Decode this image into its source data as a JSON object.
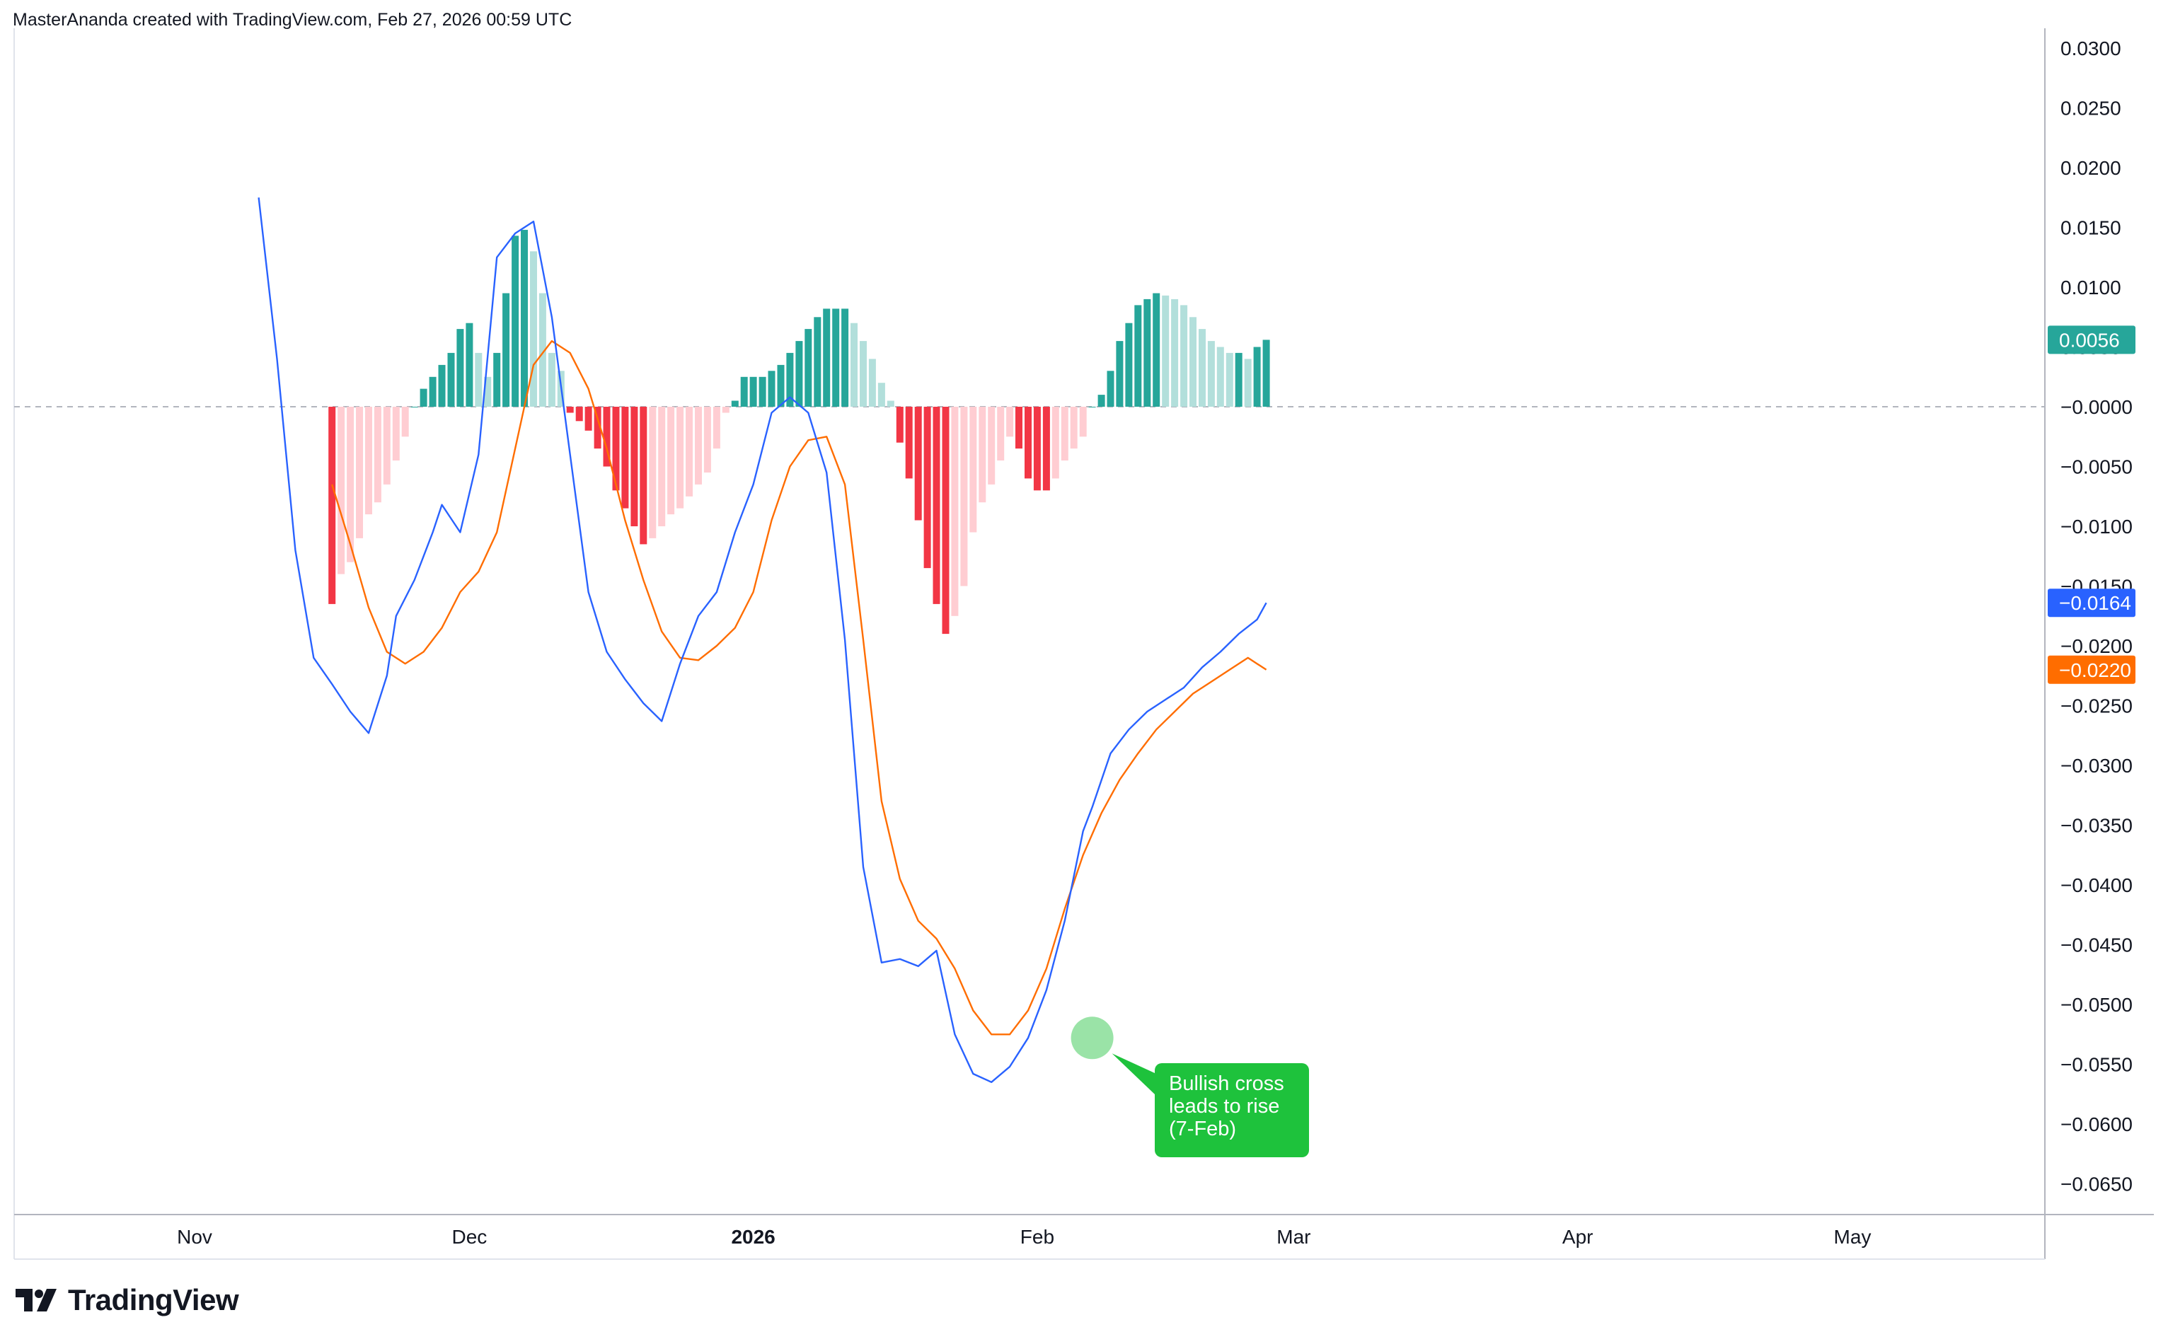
{
  "header": {
    "attribution": "MasterAnanda created with TradingView.com, Feb 27, 2026 00:59 UTC"
  },
  "brand": {
    "name": "TradingView",
    "icon": "tradingview-logo-icon"
  },
  "colors": {
    "macd_line": "#2962ff",
    "signal_line": "#ff6d00",
    "hist_pos_strong": "#26a69a",
    "hist_pos_weak": "#b2dfdb",
    "hist_neg_strong": "#f23645",
    "hist_neg_weak": "#ffcdd2",
    "annotation": "#1ec23c",
    "zero_line": "#b2b5be"
  },
  "chart_data": {
    "type": "line",
    "title": "",
    "xlabel": "",
    "ylabel": "",
    "ylim": [
      -0.0685,
      0.0305
    ],
    "xlim": [
      "2025-10-21",
      "2026-05-29"
    ],
    "grid": false,
    "y_ticks": [
      "0.0300",
      "0.0250",
      "0.0200",
      "0.0150",
      "0.0100",
      "0.0050",
      "−0.0000",
      "−0.0050",
      "−0.0100",
      "−0.0150",
      "−0.0200",
      "−0.0250",
      "−0.0300",
      "−0.0350",
      "−0.0400",
      "−0.0450",
      "−0.0500",
      "−0.0550",
      "−0.0600",
      "−0.0650"
    ],
    "x_ticks": [
      {
        "label": "Nov",
        "date": "2025-11-01",
        "bold": false
      },
      {
        "label": "Dec",
        "date": "2025-12-01",
        "bold": false
      },
      {
        "label": "2026",
        "date": "2026-01-01",
        "bold": true
      },
      {
        "label": "Feb",
        "date": "2026-02-01",
        "bold": false
      },
      {
        "label": "Mar",
        "date": "2026-03-01",
        "bold": false
      },
      {
        "label": "Apr",
        "date": "2026-04-01",
        "bold": false
      },
      {
        "label": "May",
        "date": "2026-05-01",
        "bold": false
      }
    ],
    "last_values": [
      {
        "series": "histogram",
        "label": "0.0056",
        "value": 0.0056,
        "color": "#26a69a"
      },
      {
        "series": "macd",
        "label": "−0.0164",
        "value": -0.0164,
        "color": "#2962ff"
      },
      {
        "series": "signal",
        "label": "−0.0220",
        "value": -0.022,
        "color": "#ff6d00"
      }
    ],
    "series": [
      {
        "type": "line",
        "color": "#2962ff",
        "x": [
          "2025-11-08",
          "2025-11-10",
          "2025-11-12",
          "2025-11-14",
          "2025-11-16",
          "2025-11-18",
          "2025-11-20",
          "2025-11-22",
          "2025-11-23",
          "2025-11-25",
          "2025-11-27",
          "2025-11-28",
          "2025-11-30",
          "2025-12-02",
          "2025-12-04",
          "2025-12-06",
          "2025-12-08",
          "2025-12-10",
          "2025-12-12",
          "2025-12-14",
          "2025-12-16",
          "2025-12-18",
          "2025-12-20",
          "2025-12-22",
          "2025-12-24",
          "2025-12-26",
          "2025-12-28",
          "2025-12-30",
          "2026-01-01",
          "2026-01-03",
          "2026-01-05",
          "2026-01-07",
          "2026-01-09",
          "2026-01-11",
          "2026-01-13",
          "2026-01-15",
          "2026-01-17",
          "2026-01-19",
          "2026-01-21",
          "2026-01-23",
          "2026-01-25",
          "2026-01-27",
          "2026-01-29",
          "2026-01-31",
          "2026-02-02",
          "2026-02-04",
          "2026-02-06",
          "2026-02-07",
          "2026-02-09",
          "2026-02-11",
          "2026-02-13",
          "2026-02-15",
          "2026-02-17",
          "2026-02-19",
          "2026-02-21",
          "2026-02-23",
          "2026-02-25",
          "2026-02-26"
        ],
        "values": [
          0.0175,
          0.004,
          -0.012,
          -0.021,
          -0.0232,
          -0.0255,
          -0.0273,
          -0.0225,
          -0.0175,
          -0.0145,
          -0.0105,
          -0.0082,
          -0.0105,
          -0.004,
          0.0125,
          0.0145,
          0.0155,
          0.0075,
          -0.004,
          -0.0155,
          -0.0205,
          -0.0228,
          -0.0248,
          -0.0263,
          -0.0215,
          -0.0175,
          -0.0155,
          -0.0105,
          -0.0065,
          -0.0005,
          0.0008,
          -0.0005,
          -0.0055,
          -0.0195,
          -0.0385,
          -0.0465,
          -0.0462,
          -0.0468,
          -0.0455,
          -0.0525,
          -0.0558,
          -0.0565,
          -0.0552,
          -0.0528,
          -0.0488,
          -0.043,
          -0.0355,
          -0.0335,
          -0.029,
          -0.027,
          -0.0255,
          -0.0245,
          -0.0235,
          -0.0218,
          -0.0205,
          -0.019,
          -0.0178,
          -0.0164
        ]
      },
      {
        "type": "line",
        "color": "#ff6d00",
        "x": [
          "2025-11-16",
          "2025-11-18",
          "2025-11-20",
          "2025-11-22",
          "2025-11-24",
          "2025-11-26",
          "2025-11-28",
          "2025-11-30",
          "2025-12-02",
          "2025-12-04",
          "2025-12-06",
          "2025-12-08",
          "2025-12-10",
          "2025-12-12",
          "2025-12-14",
          "2025-12-16",
          "2025-12-18",
          "2025-12-20",
          "2025-12-22",
          "2025-12-24",
          "2025-12-26",
          "2025-12-28",
          "2025-12-30",
          "2026-01-01",
          "2026-01-03",
          "2026-01-05",
          "2026-01-07",
          "2026-01-09",
          "2026-01-11",
          "2026-01-13",
          "2026-01-15",
          "2026-01-17",
          "2026-01-19",
          "2026-01-21",
          "2026-01-23",
          "2026-01-25",
          "2026-01-27",
          "2026-01-29",
          "2026-01-31",
          "2026-02-02",
          "2026-02-04",
          "2026-02-06",
          "2026-02-08",
          "2026-02-10",
          "2026-02-12",
          "2026-02-14",
          "2026-02-16",
          "2026-02-18",
          "2026-02-20",
          "2026-02-22",
          "2026-02-24",
          "2026-02-26"
        ],
        "values": [
          -0.0065,
          -0.0115,
          -0.0168,
          -0.0205,
          -0.0215,
          -0.0205,
          -0.0185,
          -0.0155,
          -0.0138,
          -0.0105,
          -0.0035,
          0.0035,
          0.0055,
          0.0045,
          0.0015,
          -0.0035,
          -0.0095,
          -0.0145,
          -0.0188,
          -0.021,
          -0.0212,
          -0.02,
          -0.0185,
          -0.0155,
          -0.0095,
          -0.005,
          -0.0028,
          -0.0025,
          -0.0065,
          -0.0195,
          -0.033,
          -0.0395,
          -0.043,
          -0.0445,
          -0.047,
          -0.0505,
          -0.0525,
          -0.0525,
          -0.0505,
          -0.047,
          -0.042,
          -0.0375,
          -0.034,
          -0.0312,
          -0.029,
          -0.027,
          -0.0255,
          -0.024,
          -0.023,
          -0.022,
          -0.021,
          -0.022
        ]
      },
      {
        "type": "bar",
        "x": [
          "2025-11-16",
          "2025-11-17",
          "2025-11-18",
          "2025-11-19",
          "2025-11-20",
          "2025-11-21",
          "2025-11-22",
          "2025-11-23",
          "2025-11-24",
          "2025-11-25",
          "2025-11-26",
          "2025-11-27",
          "2025-11-28",
          "2025-11-29",
          "2025-11-30",
          "2025-12-01",
          "2025-12-02",
          "2025-12-03",
          "2025-12-04",
          "2025-12-05",
          "2025-12-06",
          "2025-12-07",
          "2025-12-08",
          "2025-12-09",
          "2025-12-10",
          "2025-12-11",
          "2025-12-12",
          "2025-12-13",
          "2025-12-14",
          "2025-12-15",
          "2025-12-16",
          "2025-12-17",
          "2025-12-18",
          "2025-12-19",
          "2025-12-20",
          "2025-12-21",
          "2025-12-22",
          "2025-12-23",
          "2025-12-24",
          "2025-12-25",
          "2025-12-26",
          "2025-12-27",
          "2025-12-28",
          "2025-12-29",
          "2025-12-30",
          "2025-12-31",
          "2026-01-01",
          "2026-01-02",
          "2026-01-03",
          "2026-01-04",
          "2026-01-05",
          "2026-01-06",
          "2026-01-07",
          "2026-01-08",
          "2026-01-09",
          "2026-01-10",
          "2026-01-11",
          "2026-01-12",
          "2026-01-13",
          "2026-01-14",
          "2026-01-15",
          "2026-01-16",
          "2026-01-17",
          "2026-01-18",
          "2026-01-19",
          "2026-01-20",
          "2026-01-21",
          "2026-01-22",
          "2026-01-23",
          "2026-01-24",
          "2026-01-25",
          "2026-01-26",
          "2026-01-27",
          "2026-01-28",
          "2026-01-29",
          "2026-01-30",
          "2026-01-31",
          "2026-02-01",
          "2026-02-02",
          "2026-02-03",
          "2026-02-04",
          "2026-02-05",
          "2026-02-06",
          "2026-02-07",
          "2026-02-08",
          "2026-02-09",
          "2026-02-10",
          "2026-02-11",
          "2026-02-12",
          "2026-02-13",
          "2026-02-14",
          "2026-02-15",
          "2026-02-16",
          "2026-02-17",
          "2026-02-18",
          "2026-02-19",
          "2026-02-20",
          "2026-02-21",
          "2026-02-22",
          "2026-02-23",
          "2026-02-24",
          "2026-02-25",
          "2026-02-26"
        ],
        "values": [
          -0.0165,
          -0.014,
          -0.013,
          -0.011,
          -0.009,
          -0.008,
          -0.0065,
          -0.0045,
          -0.0025,
          0.0,
          0.0015,
          0.0025,
          0.0035,
          0.0045,
          0.0065,
          0.007,
          0.0045,
          0.0025,
          0.0045,
          0.0095,
          0.0143,
          0.0148,
          0.013,
          0.0095,
          0.0045,
          0.003,
          -0.0005,
          -0.0012,
          -0.002,
          -0.0035,
          -0.005,
          -0.007,
          -0.0085,
          -0.01,
          -0.0115,
          -0.011,
          -0.01,
          -0.009,
          -0.0085,
          -0.0075,
          -0.0065,
          -0.0055,
          -0.0035,
          -0.0005,
          0.0005,
          0.0025,
          0.0025,
          0.0025,
          0.003,
          0.0035,
          0.0045,
          0.0055,
          0.0065,
          0.0075,
          0.0082,
          0.0082,
          0.0082,
          0.007,
          0.0055,
          0.004,
          0.002,
          0.0005,
          -0.003,
          -0.006,
          -0.0095,
          -0.0135,
          -0.0165,
          -0.019,
          -0.0175,
          -0.015,
          -0.0105,
          -0.008,
          -0.0065,
          -0.0045,
          -0.0025,
          -0.0035,
          -0.006,
          -0.007,
          -0.007,
          -0.006,
          -0.0045,
          -0.0035,
          -0.0025,
          0.0,
          0.001,
          0.003,
          0.0055,
          0.007,
          0.0085,
          0.009,
          0.0095,
          0.0093,
          0.009,
          0.0085,
          0.0075,
          0.0065,
          0.0055,
          0.005,
          0.0045,
          0.0045,
          0.004,
          0.005,
          0.0056
        ]
      }
    ],
    "annotations": [
      {
        "text": [
          "Bullish cross",
          "leads to rise",
          "(7-Feb)"
        ],
        "date": "2026-02-07",
        "value": -0.0528,
        "marker_color": "#1ec23c"
      }
    ]
  }
}
